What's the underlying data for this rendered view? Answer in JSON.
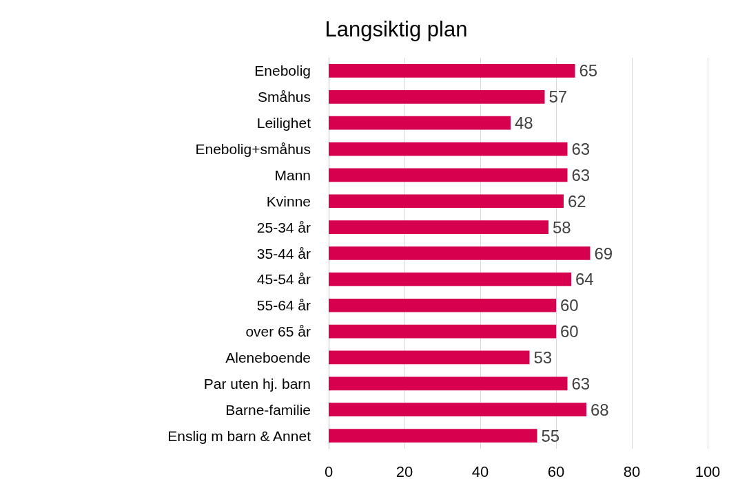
{
  "chart_data": {
    "type": "bar",
    "title": "Langsiktig plan",
    "orientation": "horizontal",
    "categories": [
      "Enebolig",
      "Småhus",
      "Leilighet",
      "Enebolig+småhus",
      "Mann",
      "Kvinne",
      "25-34 år",
      "35-44 år",
      "45-54 år",
      "55-64 år",
      "over 65 år",
      "Aleneboende",
      "Par uten hj. barn",
      "Barne-familie",
      "Enslig m barn & Annet"
    ],
    "values": [
      65,
      57,
      48,
      63,
      63,
      62,
      58,
      69,
      64,
      60,
      60,
      53,
      63,
      68,
      55
    ],
    "color": "#d6004f",
    "xlim": [
      0,
      100
    ],
    "xticks": [
      0,
      20,
      40,
      60,
      80,
      100
    ],
    "grid": "x",
    "data_labels": true
  }
}
